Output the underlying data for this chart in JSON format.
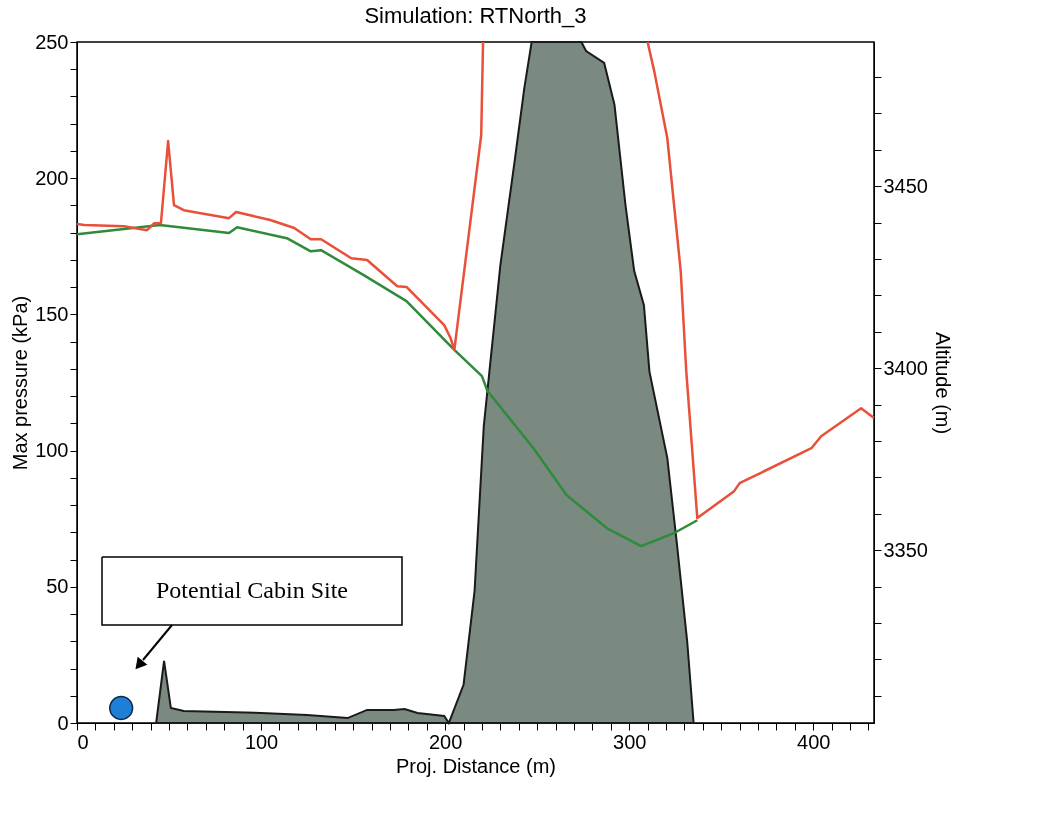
{
  "chart_data": {
    "type": "area",
    "title": "Simulation: RTNorth_3",
    "xlabel": "Proj. Distance (m)",
    "ylabel": "Max pressure (kPa)",
    "y2label": "Altitude (m)",
    "xlim": [
      0,
      433
    ],
    "ylim": [
      0,
      250
    ],
    "y2lim": [
      3302.5,
      3489.6
    ],
    "xticks": [
      0,
      {
        "value": 10,
        "label": null
      },
      {
        "value": 20,
        "label": null
      },
      {
        "value": 30,
        "label": null
      },
      {
        "value": 40,
        "label": null
      },
      {
        "value": 50,
        "label": null
      },
      {
        "value": 60,
        "label": null
      },
      {
        "value": 70,
        "label": null
      },
      {
        "value": 80,
        "label": null
      },
      {
        "value": 90,
        "label": null
      },
      100,
      {
        "value": 110,
        "label": null
      },
      {
        "value": 120,
        "label": null
      },
      {
        "value": 130,
        "label": null
      },
      {
        "value": 140,
        "label": null
      },
      {
        "value": 150,
        "label": null
      },
      {
        "value": 160,
        "label": null
      },
      {
        "value": 170,
        "label": null
      },
      {
        "value": 180,
        "label": null
      },
      {
        "value": 190,
        "label": null
      },
      200,
      {
        "value": 210,
        "label": null
      },
      {
        "value": 220,
        "label": null
      },
      {
        "value": 230,
        "label": null
      },
      {
        "value": 240,
        "label": null
      },
      {
        "value": 250,
        "label": null
      },
      {
        "value": 260,
        "label": null
      },
      {
        "value": 270,
        "label": null
      },
      {
        "value": 280,
        "label": null
      },
      {
        "value": 290,
        "label": null
      },
      300,
      {
        "value": 310,
        "label": null
      },
      {
        "value": 320,
        "label": null
      },
      {
        "value": 330,
        "label": null
      },
      {
        "value": 340,
        "label": null
      },
      {
        "value": 350,
        "label": null
      },
      {
        "value": 360,
        "label": null
      },
      {
        "value": 370,
        "label": null
      },
      {
        "value": 380,
        "label": null
      },
      {
        "value": 390,
        "label": null
      },
      400,
      {
        "value": 410,
        "label": null
      },
      {
        "value": 420,
        "label": null
      },
      {
        "value": 430,
        "label": null
      }
    ],
    "yticks": [
      0,
      {
        "value": 10,
        "label": null
      },
      {
        "value": 20,
        "label": null
      },
      {
        "value": 30,
        "label": null
      },
      {
        "value": 40,
        "label": null
      },
      50,
      {
        "value": 60,
        "label": null
      },
      {
        "value": 70,
        "label": null
      },
      {
        "value": 80,
        "label": null
      },
      {
        "value": 90,
        "label": null
      },
      100,
      {
        "value": 110,
        "label": null
      },
      {
        "value": 120,
        "label": null
      },
      {
        "value": 130,
        "label": null
      },
      {
        "value": 140,
        "label": null
      },
      150,
      {
        "value": 160,
        "label": null
      },
      {
        "value": 170,
        "label": null
      },
      {
        "value": 180,
        "label": null
      },
      {
        "value": 190,
        "label": null
      },
      200,
      {
        "value": 210,
        "label": null
      },
      {
        "value": 220,
        "label": null
      },
      {
        "value": 230,
        "label": null
      },
      {
        "value": 240,
        "label": null
      },
      250
    ],
    "y2ticks": [
      {
        "value": 3310,
        "label": null
      },
      {
        "value": 3320,
        "label": null
      },
      {
        "value": 3330,
        "label": null
      },
      {
        "value": 3340,
        "label": null
      },
      3350,
      {
        "value": 3360,
        "label": null
      },
      {
        "value": 3370,
        "label": null
      },
      {
        "value": 3380,
        "label": null
      },
      {
        "value": 3390,
        "label": null
      },
      3400,
      {
        "value": 3410,
        "label": null
      },
      {
        "value": 3420,
        "label": null
      },
      {
        "value": 3430,
        "label": null
      },
      {
        "value": 3440,
        "label": null
      },
      3450,
      {
        "value": 3460,
        "label": null
      },
      {
        "value": 3470,
        "label": null
      },
      {
        "value": 3480,
        "label": null
      }
    ],
    "series": [
      {
        "color": "#7b8a80",
        "x": [
          43,
          47.3,
          51,
          58,
          100,
          125,
          147,
          157.6,
          172,
          178,
          185,
          199.5,
          202,
          210,
          216,
          221,
          230,
          237.5,
          243,
          247,
          274,
          276.6,
          286.4,
          292,
          298,
          302.7,
          308,
          311,
          320.7,
          326,
          331.5,
          335
        ],
        "values": [
          0,
          22.8,
          5.5,
          4.4,
          3.7,
          2.9,
          1.8,
          4.8,
          4.8,
          5.1,
          3.7,
          2.6,
          0,
          14,
          48.5,
          109,
          168,
          205,
          233,
          250,
          250,
          246.7,
          242.3,
          227,
          190,
          166,
          153.4,
          129,
          97.3,
          65.3,
          30,
          0
        ]
      },
      {
        "type": "line",
        "axis": "y2",
        "line_style": "solid",
        "color": "#2e8b3a",
        "x": [
          0,
          45,
          82.6,
          87,
          114,
          127,
          132.6,
          156,
          179,
          205,
          220,
          223,
          248,
          266,
          288,
          306.5,
          324.5,
          337
        ],
        "values": [
          3436.8,
          3439.3,
          3437.1,
          3438.7,
          3435.7,
          3432.1,
          3432.4,
          3425.5,
          3418.4,
          3405,
          3397.8,
          3393.7,
          3378,
          3365.1,
          3356,
          3351.1,
          3354.7,
          3358.2
        ]
      },
      {
        "type": "line",
        "axis": "y2",
        "line_style": "solid",
        "color": "#e8503a",
        "x": [
          0,
          4,
          25.5,
          38,
          42,
          45.6,
          49.5,
          52.7,
          58,
          82.6,
          86.4,
          105,
          118,
          127,
          132.6,
          149,
          157.6,
          174,
          179,
          199.5,
          203,
          205,
          219.6,
          220.6,
          265,
          310,
          313.6,
          320.7,
          328,
          331,
          337,
          357,
          360,
          399,
          404.3,
          426,
          433
        ],
        "values": [
          3439.6,
          3439.3,
          3439,
          3437.9,
          3439.8,
          3439.8,
          3462.4,
          3444.8,
          3443.4,
          3441.2,
          3442.9,
          3440.7,
          3438.5,
          3435.4,
          3435.4,
          3430.2,
          3429.7,
          3422.5,
          3422.3,
          3411.8,
          3408.2,
          3405,
          3464,
          3489.6,
          null,
          3489.6,
          3481.6,
          3463.2,
          3426.6,
          3399.2,
          3358.8,
          3366.2,
          3368.4,
          3378,
          3381.3,
          3389,
          3386.3
        ]
      },
      {
        "type": "scatter",
        "marker": "circle",
        "color": "#1f7fd6",
        "x": [
          24
        ],
        "values": [
          5.5
        ]
      }
    ],
    "annotations": [
      "Potential Cabin Site"
    ]
  }
}
